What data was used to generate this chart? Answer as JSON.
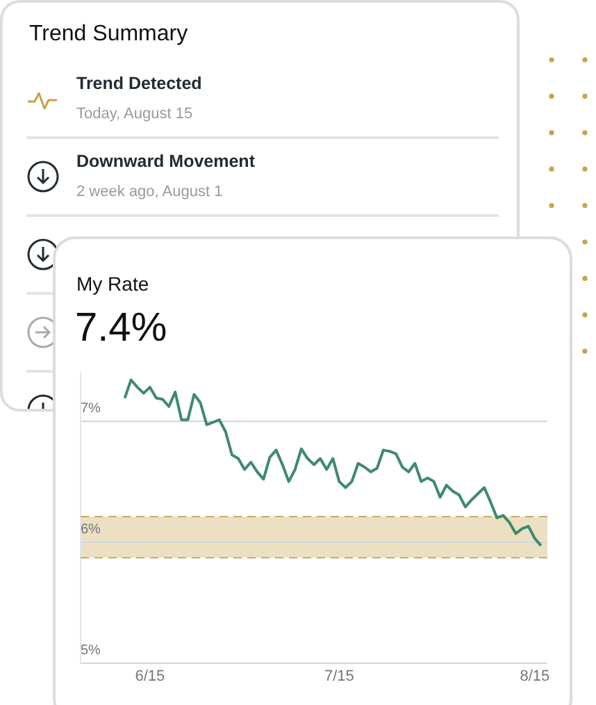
{
  "chart_data": [
    {
      "type": "other",
      "title": "Trend Summary",
      "annotations": [
        "Trend Detected",
        "Today, August 15",
        "Downward Movement",
        "2 week ago, August 1"
      ]
    },
    {
      "type": "line",
      "title": "My Rate",
      "subtitle": "7.4%",
      "x": [
        "--06-11",
        "--06-12",
        "--06-13",
        "--06-14",
        "--06-15",
        "--06-16",
        "--06-17",
        "--06-18",
        "--06-19",
        "--06-20",
        "--06-21",
        "--06-22",
        "--06-23",
        "--06-24",
        "--06-25",
        "--06-26",
        "--06-27",
        "--06-28",
        "--06-29",
        "--06-30",
        "--07-01",
        "--07-02",
        "--07-03",
        "--07-04",
        "--07-05",
        "--07-06",
        "--07-07",
        "--07-08",
        "--07-09",
        "--07-10",
        "--07-11",
        "--07-12",
        "--07-13",
        "--07-14",
        "--07-15",
        "--07-16",
        "--07-17",
        "--07-18",
        "--07-19",
        "--07-20",
        "--07-21",
        "--07-22",
        "--07-23",
        "--07-24",
        "--07-25",
        "--07-26",
        "--07-27",
        "--07-28",
        "--07-29",
        "--07-30",
        "--07-31",
        "--08-01",
        "--08-02",
        "--08-03",
        "--08-04",
        "--08-05",
        "--08-06",
        "--08-07",
        "--08-08",
        "--08-09",
        "--08-10",
        "--08-11",
        "--08-12",
        "--08-13",
        "--08-14",
        "--08-15",
        "--08-16"
      ],
      "series": [
        {
          "color": "#3f8a6e",
          "values": [
            7.19,
            7.34,
            7.28,
            7.23,
            7.28,
            7.19,
            7.18,
            7.12,
            7.24,
            7.01,
            7.01,
            7.22,
            7.15,
            6.97,
            6.99,
            7.01,
            6.91,
            6.72,
            6.69,
            6.6,
            6.66,
            6.58,
            6.52,
            6.7,
            6.76,
            6.64,
            6.5,
            6.6,
            6.77,
            6.69,
            6.64,
            6.69,
            6.6,
            6.69,
            6.5,
            6.45,
            6.5,
            6.65,
            6.62,
            6.58,
            6.61,
            6.76,
            6.75,
            6.73,
            6.62,
            6.58,
            6.65,
            6.5,
            6.53,
            6.5,
            6.37,
            6.47,
            6.42,
            6.39,
            6.29,
            6.35,
            6.4,
            6.45,
            6.33,
            6.2,
            6.22,
            6.16,
            6.07,
            6.11,
            6.13,
            6.03,
            5.97
          ]
        }
      ],
      "xlim": [
        "--06-04",
        "--08-17"
      ],
      "xticks": [
        {
          "value": "--06-15",
          "label": "6/15"
        },
        {
          "value": "--07-15",
          "label": "7/15"
        },
        {
          "value": "--08-15",
          "label": "8/15"
        }
      ],
      "ylim": [
        5,
        7.4
      ],
      "yticks": [
        {
          "value": 5,
          "label": "5%"
        },
        {
          "value": 6,
          "label": "6%"
        },
        {
          "value": 7,
          "label": "7%"
        }
      ],
      "bands": [
        {
          "axis": "y",
          "from": 5.87,
          "to": 6.21,
          "color": "#ebe0c2"
        }
      ],
      "ref_lines": [
        {
          "axis": "y",
          "value": 6.21,
          "color": "#c8aa6e",
          "line_style": "dashed"
        },
        {
          "axis": "y",
          "value": 5.87,
          "color": "#c8aa6e",
          "line_style": "dashed"
        }
      ],
      "grid": "y",
      "legend": false,
      "marker": "none",
      "line_style": "solid"
    }
  ]
}
